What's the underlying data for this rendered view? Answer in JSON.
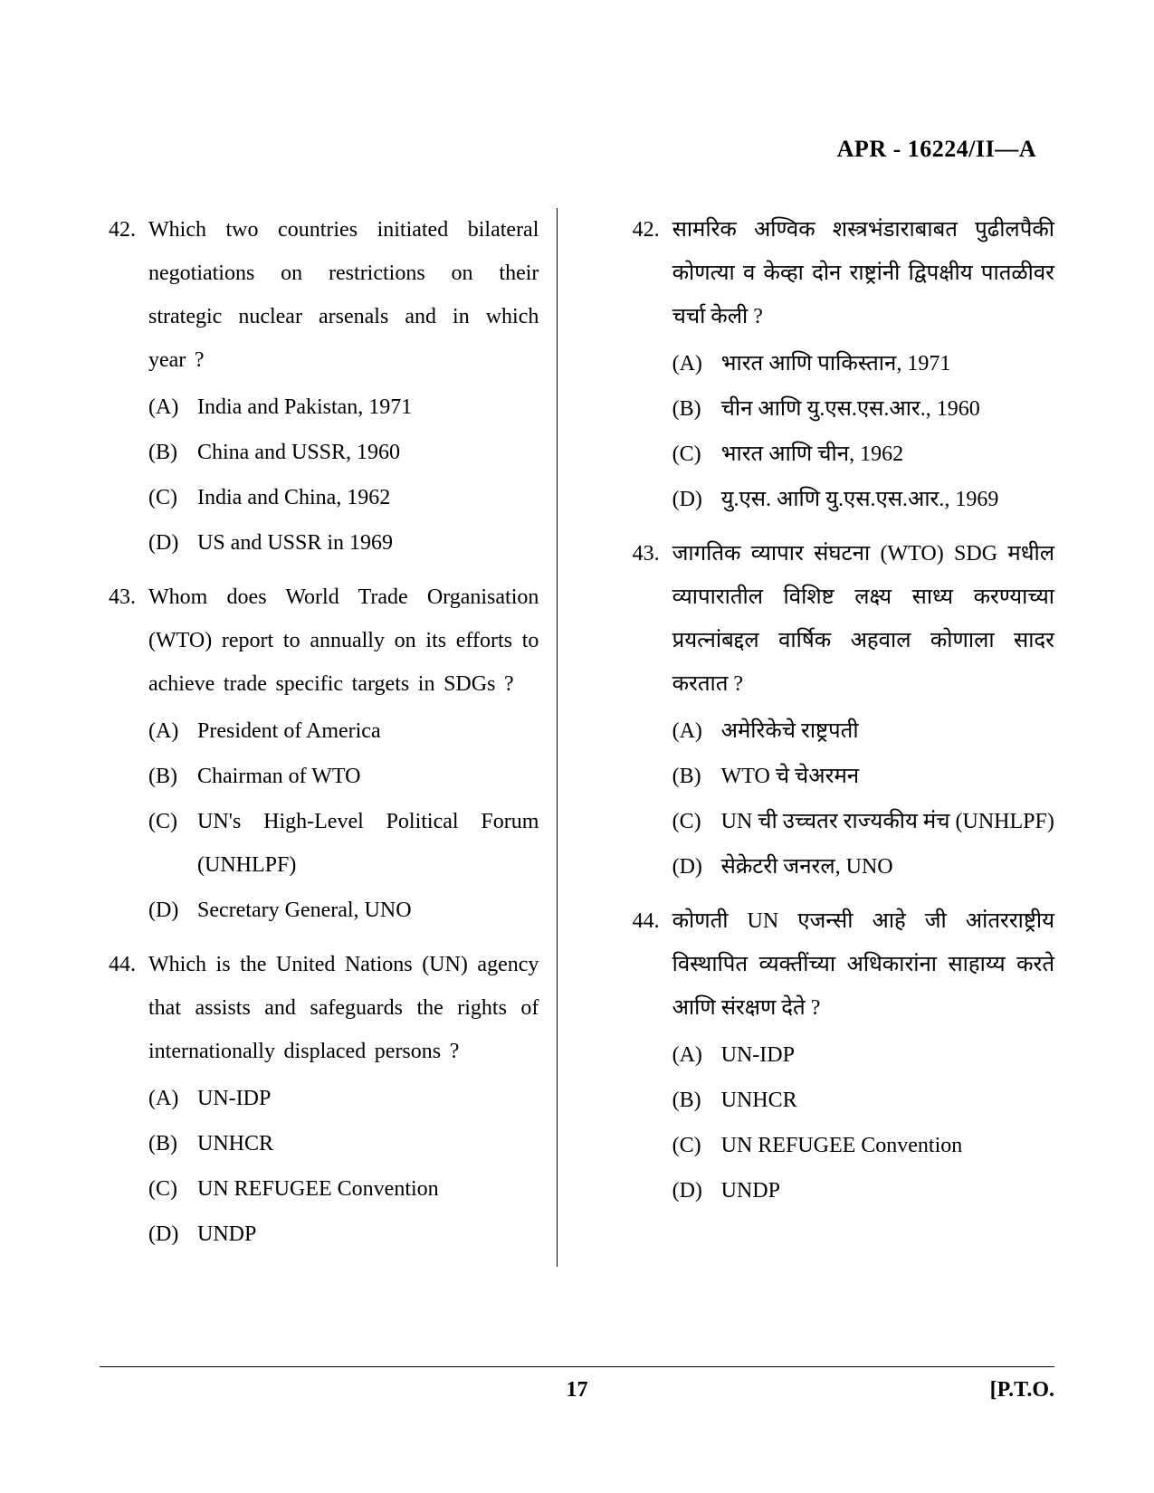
{
  "header": {
    "code": "APR - 16224/II—A"
  },
  "footer": {
    "page": "17",
    "pto": "[P.T.O."
  },
  "left": {
    "questions": [
      {
        "num": "42.",
        "text": "Which two countries initiated bilateral negotiations on restrictions on their strategic nuclear arsenals and in which year ?",
        "options": [
          {
            "label": "(A)",
            "text": "India and Pakistan, 1971"
          },
          {
            "label": "(B)",
            "text": "China and USSR, 1960"
          },
          {
            "label": "(C)",
            "text": "India and China, 1962"
          },
          {
            "label": "(D)",
            "text": "US and USSR in 1969"
          }
        ]
      },
      {
        "num": "43.",
        "text": "Whom does World Trade Organisation (WTO) report to annually on its efforts to achieve trade specific targets in SDGs ?",
        "options": [
          {
            "label": "(A)",
            "text": "President of America"
          },
          {
            "label": "(B)",
            "text": "Chairman of WTO"
          },
          {
            "label": "(C)",
            "text": "UN's High-Level Political Forum (UNHLPF)"
          },
          {
            "label": "(D)",
            "text": "Secretary General, UNO"
          }
        ]
      },
      {
        "num": "44.",
        "text": "Which is the United Nations (UN) agency that assists and safeguards the rights of internationally displaced persons ?",
        "options": [
          {
            "label": "(A)",
            "text": "UN-IDP"
          },
          {
            "label": "(B)",
            "text": "UNHCR"
          },
          {
            "label": "(C)",
            "text": "UN REFUGEE Convention"
          },
          {
            "label": "(D)",
            "text": "UNDP"
          }
        ]
      }
    ]
  },
  "right": {
    "questions": [
      {
        "num": "42.",
        "text": "सामरिक अण्विक शस्त्रभंडाराबाबत पुढीलपैकी कोणत्या व केव्हा दोन राष्ट्रांनी द्विपक्षीय पातळीवर चर्चा केली ?",
        "options": [
          {
            "label": "(A)",
            "text": "भारत आणि पाकिस्तान, 1971"
          },
          {
            "label": "(B)",
            "text": "चीन आणि यु.एस.एस.आर., 1960"
          },
          {
            "label": "(C)",
            "text": "भारत आणि चीन, 1962"
          },
          {
            "label": "(D)",
            "text": "यु.एस. आणि यु.एस.एस.आर., 1969"
          }
        ]
      },
      {
        "num": "43.",
        "text": "जागतिक व्यापार संघटना (WTO) SDG मधील व्यापारातील विशिष्ट लक्ष्य साध्य करण्याच्या प्रयत्नांबद्दल वार्षिक अहवाल कोणाला सादर करतात ?",
        "options": [
          {
            "label": "(A)",
            "text": "अमेरिकेचे राष्ट्रपती"
          },
          {
            "label": "(B)",
            "text": "WTO चे चेअरमन"
          },
          {
            "label": "(C)",
            "text": "UN ची उच्चतर राज्यकीय मंच (UNHLPF)"
          },
          {
            "label": "(D)",
            "text": "सेक्रेटरी जनरल, UNO"
          }
        ]
      },
      {
        "num": "44.",
        "text": "कोणती UN एजन्सी आहे जी आंतरराष्ट्रीय विस्थापित व्यक्तींच्या अधिकारांना साहाय्य करते आणि संरक्षण देते ?",
        "options": [
          {
            "label": "(A)",
            "text": "UN-IDP"
          },
          {
            "label": "(B)",
            "text": "UNHCR"
          },
          {
            "label": "(C)",
            "text": "UN REFUGEE Convention"
          },
          {
            "label": "(D)",
            "text": "UNDP"
          }
        ]
      }
    ]
  }
}
